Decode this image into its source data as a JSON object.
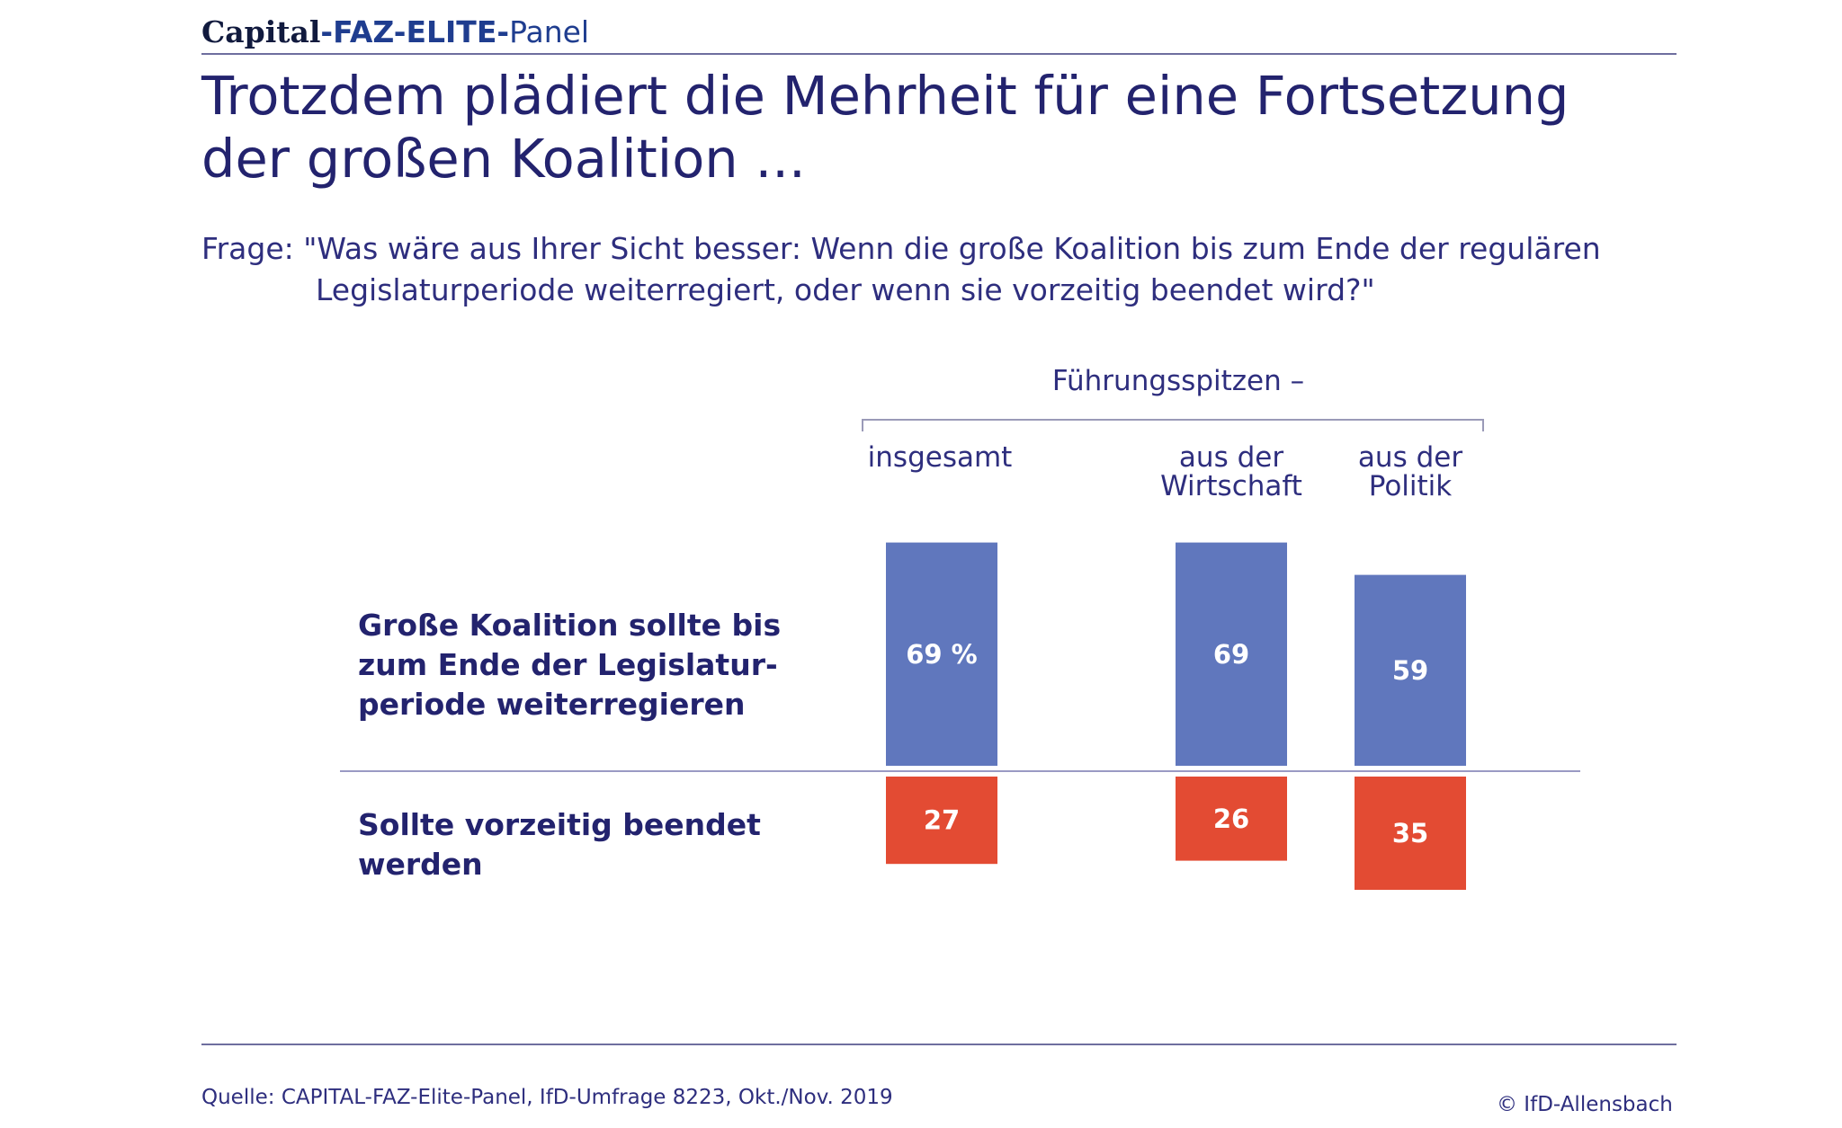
{
  "header": {
    "brand_capital": "Capital",
    "brand_faz": "-FAZ-ELITE-",
    "brand_panel": "Panel"
  },
  "title_lines": [
    "Trotzdem plädiert die Mehrheit für eine Fortsetzung",
    "der großen Koalition ..."
  ],
  "question_lines": [
    "Frage: \"Was wäre aus Ihrer Sicht besser: Wenn die große Koalition bis zum Ende der regulären",
    "Legislaturperiode weiterregiert, oder wenn sie vorzeitig beendet wird?\""
  ],
  "colors": {
    "text": "#23236e",
    "positive_bar": "#6077bd",
    "negative_bar": "#e34b33"
  },
  "chart_data": {
    "type": "bar",
    "group_label": "Führungsspitzen –",
    "categories": [
      "insgesamt",
      "aus der Wirtschaft",
      "aus der Politik"
    ],
    "category_lines": [
      [
        "insgesamt"
      ],
      [
        "aus der",
        "Wirtschaft"
      ],
      [
        "aus der",
        "Politik"
      ]
    ],
    "series": [
      {
        "name": "Große Koalition sollte bis zum Ende der Legislaturperiode weiterregieren",
        "name_lines": [
          "Große Koalition sollte bis",
          "zum Ende der Legislatur-",
          "periode weiterregieren"
        ],
        "values": [
          69,
          69,
          59
        ],
        "value_labels": [
          "69 %",
          "69",
          "59"
        ],
        "color": "#6077bd"
      },
      {
        "name": "Sollte vorzeitig beendet werden",
        "name_lines": [
          "Sollte vorzeitig beendet",
          "werden"
        ],
        "values": [
          27,
          26,
          35
        ],
        "value_labels": [
          "27",
          "26",
          "35"
        ],
        "color": "#e34b33"
      }
    ],
    "unit": "%",
    "orientation": "diverging around baseline (upper series above, lower series below)"
  },
  "footer": {
    "source": "Quelle: CAPITAL-FAZ-Elite-Panel, IfD-Umfrage 8223, Okt./Nov. 2019",
    "copyright": "© IfD-Allensbach"
  }
}
